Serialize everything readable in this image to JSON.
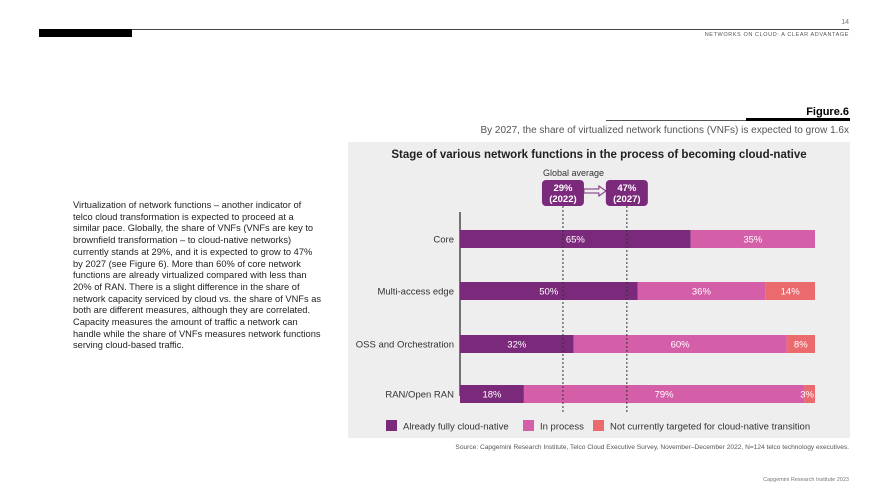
{
  "page": {
    "number": "14",
    "header_label": "NETWORKS ON CLOUD: A CLEAR ADVANTAGE",
    "footer": "Capgemini Research Institute 2023"
  },
  "body_text": "Virtualization of network functions – another indicator of telco cloud transformation is expected to proceed at a similar pace. Globally, the share of VNFs (VNFs are key to brownfield transformation – to cloud-native networks) currently stands at 29%, and it is expected to grow to 47% by 2027 (see Figure 6). More than 60% of core network functions are already virtualized compared with less than 20% of RAN. There is a slight difference in the share of network capacity serviced by cloud vs. the share of VNFs as both are different measures, although they are correlated. Capacity measures the amount of traffic a network can handle while the share of VNFs measures network functions serving cloud-based traffic.",
  "figure": {
    "label": "Figure.6",
    "subtitle": "By 2027, the share of virtualized network functions (VNFs) is expected to grow 1.6x",
    "source": "Source: Capgemini Research Institute, Telco Cloud Executive Survey, November–December 2022, N=124 telco technology executives."
  },
  "colors": {
    "already": "#7b2a7b",
    "in_process": "#d45fa8",
    "not_targeted": "#eb6a6e",
    "badge": "#7b2a7b"
  },
  "chart_data": {
    "type": "bar",
    "orientation": "horizontal",
    "stacked": true,
    "title": "Stage of various network functions in the process of becoming cloud-native",
    "categories": [
      "Core",
      "Multi-access edge",
      "OSS and Orchestration",
      "RAN/Open RAN"
    ],
    "series": [
      {
        "name": "Already fully cloud-native",
        "values": [
          65,
          50,
          32,
          18
        ],
        "labels": [
          "65%",
          "50%",
          "32%",
          "18%"
        ]
      },
      {
        "name": "In process",
        "values": [
          35,
          36,
          60,
          79
        ],
        "labels": [
          "35%",
          "36%",
          "60%",
          "79%"
        ]
      },
      {
        "name": "Not currently targeted for cloud-native transition",
        "values": [
          0,
          14,
          8,
          3
        ],
        "labels": [
          "",
          "14%",
          "8%",
          "3%"
        ]
      }
    ],
    "xlim": [
      0,
      100
    ],
    "legend_position": "bottom",
    "annotations": {
      "global_average_label": "Global average",
      "reference_lines": [
        {
          "value": 29,
          "label_line1": "29%",
          "label_line2": "(2022)"
        },
        {
          "value": 47,
          "label_line1": "47%",
          "label_line2": "(2027)"
        }
      ]
    }
  }
}
